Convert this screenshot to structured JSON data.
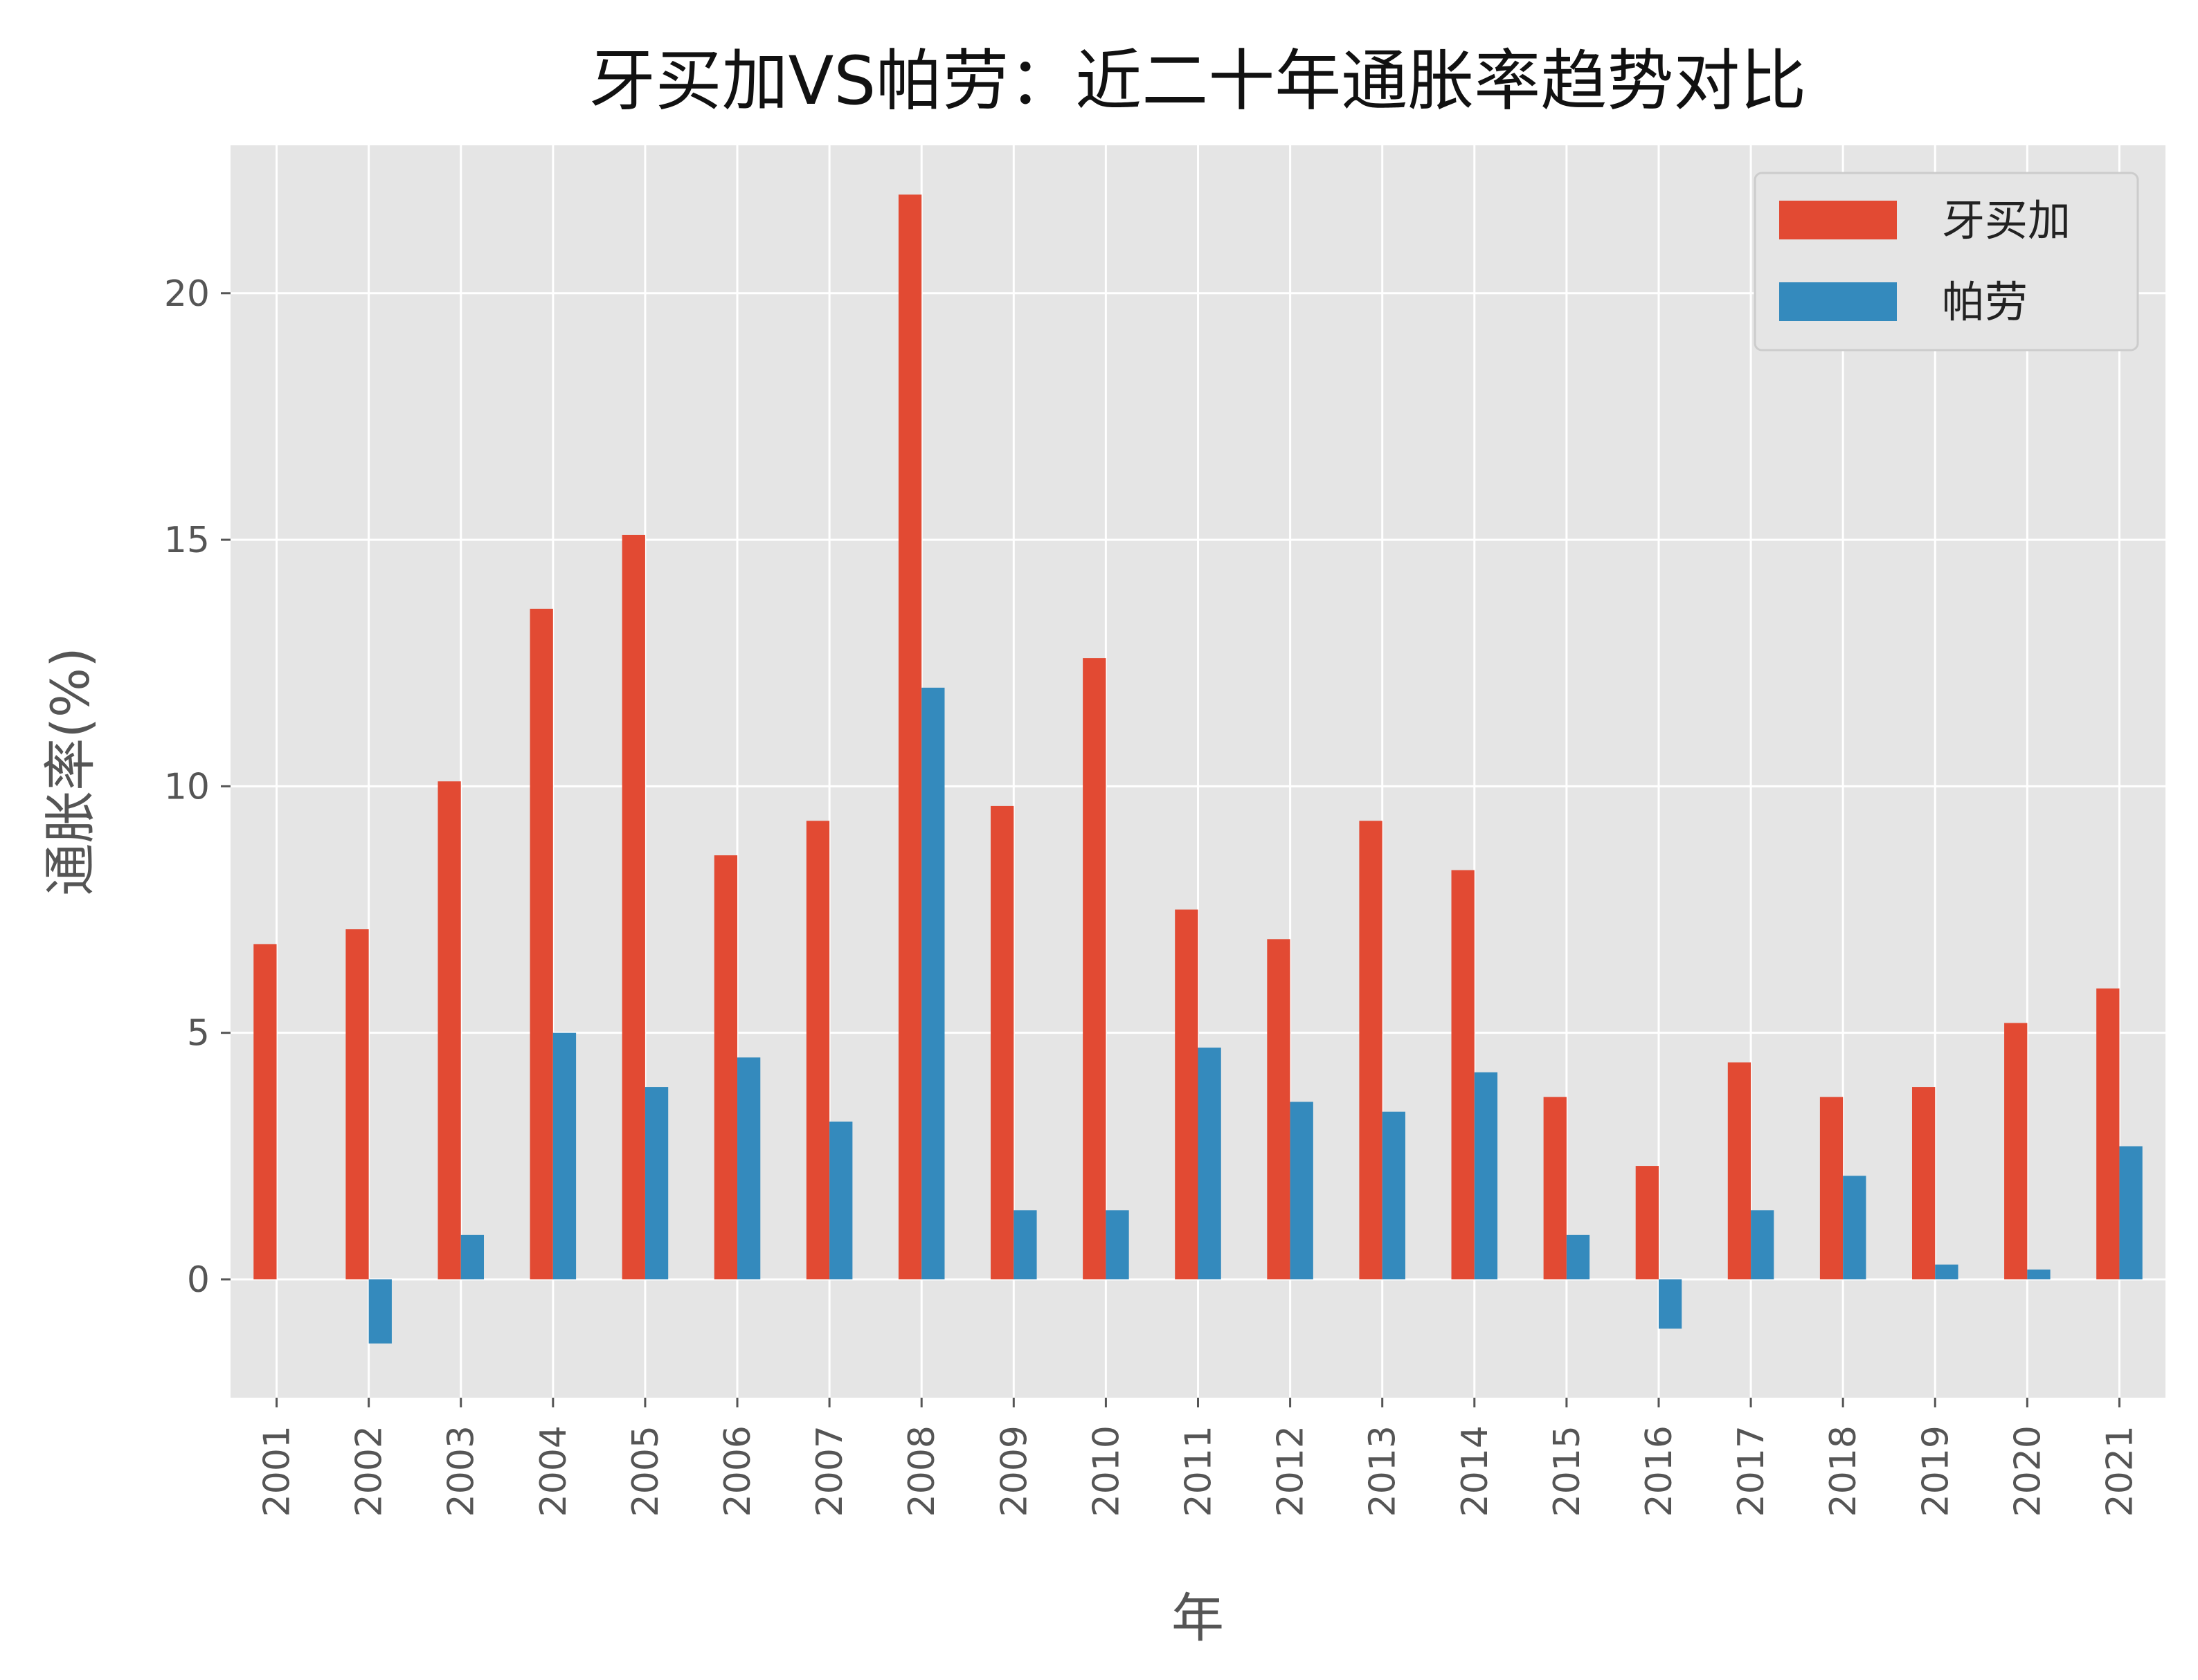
{
  "chart_data": {
    "type": "bar",
    "title": "牙买加VS帕劳：近二十年通胀率趋势对比",
    "xlabel": "年",
    "ylabel": "通胀率(%)",
    "ylim": [
      -2.4,
      23.0
    ],
    "yticks": [
      0,
      5,
      10,
      15,
      20
    ],
    "grid": true,
    "legend_position": "top-right",
    "categories": [
      "2001",
      "2002",
      "2003",
      "2004",
      "2005",
      "2006",
      "2007",
      "2008",
      "2009",
      "2010",
      "2011",
      "2012",
      "2013",
      "2014",
      "2015",
      "2016",
      "2017",
      "2018",
      "2019",
      "2020",
      "2021"
    ],
    "series": [
      {
        "name": "牙买加",
        "color": "#E24A33",
        "values": [
          6.8,
          7.1,
          10.1,
          13.6,
          15.1,
          8.6,
          9.3,
          22.0,
          9.6,
          12.6,
          7.5,
          6.9,
          9.3,
          8.3,
          3.7,
          2.3,
          4.4,
          3.7,
          3.9,
          5.2,
          5.9
        ]
      },
      {
        "name": "帕劳",
        "color": "#348ABD",
        "values": [
          0.0,
          -1.3,
          0.9,
          5.0,
          3.9,
          4.5,
          3.2,
          12.0,
          1.4,
          1.4,
          4.7,
          3.6,
          3.4,
          4.2,
          0.9,
          -1.0,
          1.4,
          2.1,
          0.3,
          0.2,
          2.7
        ]
      }
    ],
    "colors": {
      "plot_background": "#E5E5E5",
      "grid": "#FFFFFF",
      "tick_text": "#555555"
    }
  }
}
